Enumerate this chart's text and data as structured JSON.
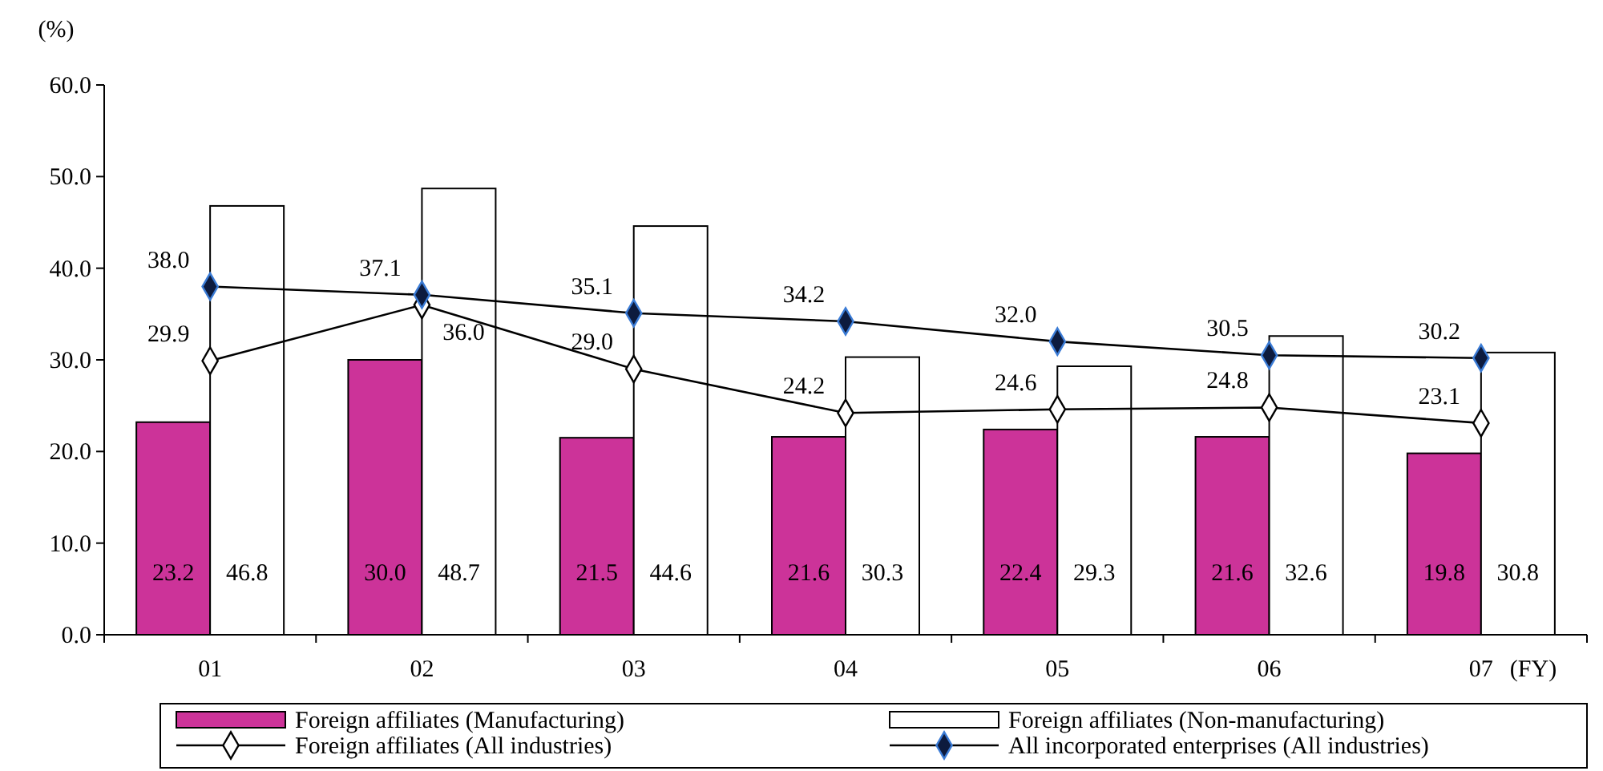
{
  "chart_data": {
    "type": "bar",
    "ylabel": "(%)",
    "xlabel": "(FY)",
    "categories": [
      "01",
      "02",
      "03",
      "04",
      "05",
      "06",
      "07"
    ],
    "series": [
      {
        "name": "Foreign affiliates (Manufacturing)",
        "color": "#cc3399",
        "values": [
          23.2,
          30.0,
          21.5,
          21.6,
          22.4,
          21.6,
          19.8
        ],
        "value_labels": [
          "23.2",
          "30.0",
          "21.5",
          "21.6",
          "22.4",
          "21.6",
          "19.8"
        ]
      },
      {
        "name": "Foreign affiliates (Non-manufacturing)",
        "color": "#ffffff",
        "values": [
          46.8,
          48.7,
          44.6,
          30.3,
          29.3,
          32.6,
          30.8
        ],
        "value_labels": [
          "46.8",
          "48.7",
          "44.6",
          "30.3",
          "29.3",
          "32.6",
          "30.8"
        ]
      },
      {
        "name": "Foreign affiliates (All industries)",
        "type": "line",
        "color": "#ffffff",
        "values": [
          29.9,
          36.0,
          29.0,
          24.2,
          24.6,
          24.8,
          23.1
        ],
        "value_labels": [
          "29.9",
          "36.0",
          "29.0",
          "24.2",
          "24.6",
          "24.8",
          "23.1"
        ]
      },
      {
        "name": "All incorporated enterprises (All industries)",
        "type": "line",
        "color": "#0d1b3e",
        "values": [
          38.0,
          37.1,
          35.1,
          34.2,
          32.0,
          30.5,
          30.2
        ],
        "value_labels": [
          "38.0",
          "37.1",
          "35.1",
          "34.2",
          "32.0",
          "30.5",
          "30.2"
        ]
      }
    ],
    "ylim": [
      0,
      60
    ],
    "yticks": [
      {
        "value": 0,
        "label": "0.0"
      },
      {
        "value": 10,
        "label": "10.0"
      },
      {
        "value": 20,
        "label": "20.0"
      },
      {
        "value": 30,
        "label": "30.0"
      },
      {
        "value": 40,
        "label": "40.0"
      },
      {
        "value": 50,
        "label": "50.0"
      },
      {
        "value": 60,
        "label": "60.0"
      }
    ],
    "grid": false,
    "legend": "bottom",
    "marker": "diamond"
  }
}
